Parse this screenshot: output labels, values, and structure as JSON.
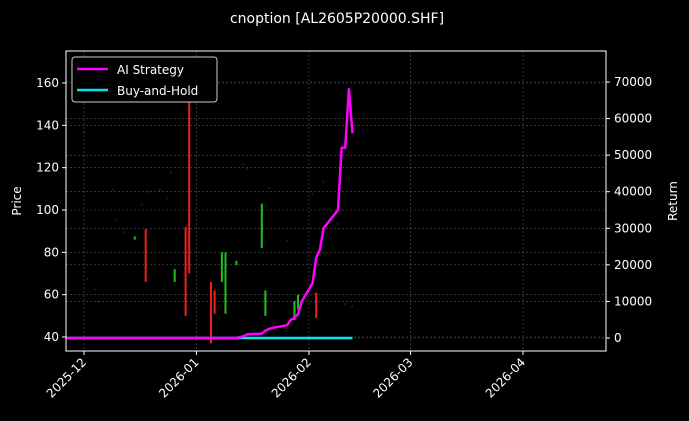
{
  "chart_data": {
    "type": "line",
    "title": "cnoption [AL2605P20000.SHF]",
    "xlabel": "",
    "ylabel": "Price",
    "ylabel_right": "Return",
    "grid": true,
    "legend_position": "upper left",
    "background": "#000000",
    "x_ticks": [
      "2025-12",
      "2026-01",
      "2026-02",
      "2026-03",
      "2026-04"
    ],
    "y_ticks_left": [
      40,
      60,
      80,
      100,
      120,
      140,
      160
    ],
    "y_ticks_right": [
      0,
      10000,
      20000,
      30000,
      40000,
      50000,
      60000,
      70000
    ],
    "ylim_left": [
      33,
      175
    ],
    "ylim_right": [
      -3500,
      78000
    ],
    "xlim": [
      "2025-11-26",
      "2026-04-24"
    ],
    "legend": [
      {
        "label": "AI Strategy",
        "color": "#ff00ff"
      },
      {
        "label": "Buy-and-Hold",
        "color": "#00e5ee"
      }
    ],
    "candles": [
      {
        "date": "2025-12-01",
        "low": 136,
        "high": 137,
        "color": "#ff2020",
        "faint": true
      },
      {
        "date": "2025-12-02",
        "low": 67,
        "high": 68,
        "color": "#ff2020",
        "faint": true
      },
      {
        "date": "2025-12-04",
        "low": 62,
        "high": 63,
        "color": "#ff2020",
        "faint": true
      },
      {
        "date": "2025-12-05",
        "low": 56,
        "high": 57,
        "color": "#ff2020",
        "faint": true
      },
      {
        "date": "2025-12-09",
        "low": 109,
        "high": 110,
        "color": "#ff2020",
        "faint": true
      },
      {
        "date": "2025-12-10",
        "low": 95,
        "high": 96,
        "color": "#ff2020",
        "faint": true
      },
      {
        "date": "2025-12-12",
        "low": 89,
        "high": 90,
        "color": "#ff2020",
        "faint": true
      },
      {
        "date": "2025-12-15",
        "low": 86,
        "high": 87.5,
        "color": "#22cc22",
        "faint": false
      },
      {
        "date": "2025-12-17",
        "low": 102,
        "high": 103,
        "color": "#ff2020",
        "faint": true
      },
      {
        "date": "2025-12-18",
        "low": 66,
        "high": 91,
        "color": "#ff2020",
        "faint": false
      },
      {
        "date": "2025-12-19",
        "low": 108,
        "high": 109,
        "color": "#ff2020",
        "faint": true
      },
      {
        "date": "2025-12-22",
        "low": 109,
        "high": 110,
        "color": "#ff2020",
        "faint": true
      },
      {
        "date": "2025-12-23",
        "low": 62,
        "high": 63,
        "color": "#ff2020",
        "faint": true
      },
      {
        "date": "2025-12-24",
        "low": 105,
        "high": 106,
        "color": "#ff2020",
        "faint": true
      },
      {
        "date": "2025-12-25",
        "low": 117,
        "high": 118,
        "color": "#ff2020",
        "faint": true
      },
      {
        "date": "2025-12-26",
        "low": 66,
        "high": 72,
        "color": "#22cc22",
        "faint": false
      },
      {
        "date": "2025-12-29",
        "low": 50,
        "high": 92,
        "color": "#ff2020",
        "faint": false
      },
      {
        "date": "2025-12-30",
        "low": 70,
        "high": 160,
        "color": "#ff2020",
        "faint": false
      },
      {
        "date": "2026-01-05",
        "low": 37,
        "high": 66,
        "color": "#ff2020",
        "faint": false
      },
      {
        "date": "2026-01-06",
        "low": 51,
        "high": 62,
        "color": "#ff2020",
        "faint": false
      },
      {
        "date": "2026-01-08",
        "low": 66,
        "high": 80,
        "color": "#22cc22",
        "faint": false
      },
      {
        "date": "2026-01-09",
        "low": 51,
        "high": 80,
        "color": "#22cc22",
        "faint": false
      },
      {
        "date": "2026-01-12",
        "low": 74,
        "high": 76,
        "color": "#22cc22",
        "faint": false
      },
      {
        "date": "2026-01-14",
        "low": 121,
        "high": 122,
        "color": "#ff2020",
        "faint": true
      },
      {
        "date": "2026-01-15",
        "low": 119,
        "high": 120,
        "color": "#ff2020",
        "faint": true
      },
      {
        "date": "2026-01-19",
        "low": 82,
        "high": 103,
        "color": "#22cc22",
        "faint": false
      },
      {
        "date": "2026-01-20",
        "low": 50,
        "high": 62,
        "color": "#22cc22",
        "faint": false
      },
      {
        "date": "2026-01-21",
        "low": 110,
        "high": 111,
        "color": "#ff2020",
        "faint": true
      },
      {
        "date": "2026-01-26",
        "low": 85,
        "high": 86,
        "color": "#ff2020",
        "faint": true
      },
      {
        "date": "2026-01-28",
        "low": 48,
        "high": 57,
        "color": "#22cc22",
        "faint": false
      },
      {
        "date": "2026-01-29",
        "low": 53,
        "high": 60,
        "color": "#22cc22",
        "faint": false
      },
      {
        "date": "2026-02-02",
        "low": 107,
        "high": 108,
        "color": "#ff2020",
        "faint": true
      },
      {
        "date": "2026-02-03",
        "low": 49,
        "high": 61,
        "color": "#ff2020",
        "faint": false
      },
      {
        "date": "2026-02-05",
        "low": 113,
        "high": 114,
        "color": "#ff2020",
        "faint": true
      },
      {
        "date": "2026-02-09",
        "low": 93,
        "high": 94,
        "color": "#ff2020",
        "faint": true
      },
      {
        "date": "2026-02-11",
        "low": 55,
        "high": 56,
        "color": "#ff2020",
        "faint": true
      },
      {
        "date": "2026-02-13",
        "low": 54,
        "high": 55,
        "color": "#ff2020",
        "faint": true
      }
    ],
    "series": [
      {
        "name": "AI Strategy",
        "axis": "right",
        "color": "#ff00ff",
        "x": [
          "2025-11-26",
          "2026-01-12",
          "2026-01-14",
          "2026-01-15",
          "2026-01-19",
          "2026-01-20",
          "2026-01-21",
          "2026-01-22",
          "2026-01-26",
          "2026-01-27",
          "2026-01-28",
          "2026-01-29",
          "2026-01-30",
          "2026-02-02",
          "2026-02-03",
          "2026-02-04",
          "2026-02-05",
          "2026-02-09",
          "2026-02-10",
          "2026-02-11",
          "2026-02-12",
          "2026-02-13"
        ],
        "values": [
          0,
          0,
          500,
          1000,
          1200,
          2000,
          2500,
          2800,
          3500,
          5000,
          5500,
          6500,
          10000,
          15000,
          22000,
          24000,
          30000,
          35000,
          52000,
          52000,
          68000,
          56000
        ]
      },
      {
        "name": "Buy-and-Hold",
        "axis": "right",
        "color": "#00e5ee",
        "x": [
          "2025-11-26",
          "2026-02-13"
        ],
        "values": [
          0,
          0
        ]
      }
    ]
  }
}
